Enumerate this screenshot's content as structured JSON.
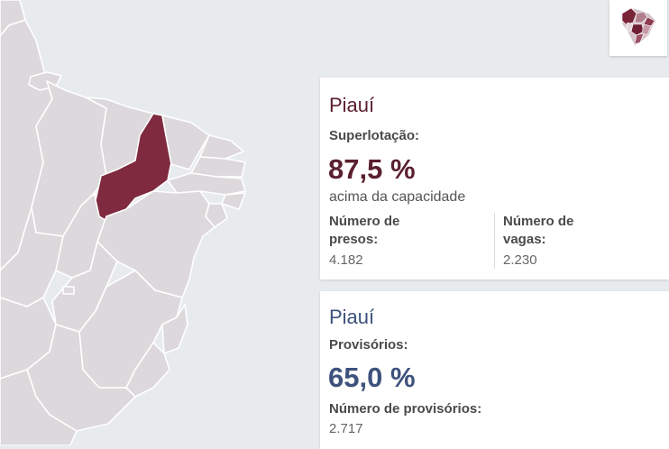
{
  "map": {
    "highlighted_state": "Piauí",
    "highlight_color": "#7f2a3e",
    "base_color": "#dcd8db",
    "background_color": "#e8ebee"
  },
  "mini_map": {
    "icon": "brazil-map-icon"
  },
  "card_superlotacao": {
    "state": "Piauí",
    "label": "Superlotação:",
    "percent": "87,5 %",
    "description": "acima da capacidade",
    "presos_label": "Número de presos:",
    "presos_value": "4.182",
    "vagas_label": "Número de vagas:",
    "vagas_value": "2.230",
    "accent_color": "#5a1f2e"
  },
  "card_provisorios": {
    "state": "Piauí",
    "label": "Provisórios:",
    "percent": "65,0 %",
    "provisorios_label": "Número de provisórios:",
    "provisorios_value": "2.717",
    "accent_color": "#3d527c"
  }
}
